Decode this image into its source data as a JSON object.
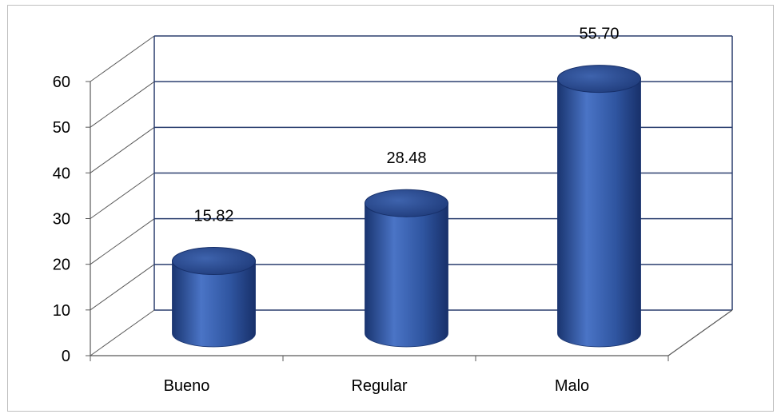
{
  "chart_data": {
    "type": "bar",
    "style": "3d-cylinder",
    "categories": [
      "Bueno",
      "Regular",
      "Malo"
    ],
    "values": [
      15.82,
      28.48,
      55.7
    ],
    "data_labels": [
      "15.82",
      "28.48",
      "55.70"
    ],
    "ylim": [
      0,
      60
    ],
    "yticks": [
      "0",
      "10",
      "20",
      "30",
      "40",
      "50",
      "60"
    ],
    "grid": true,
    "legend": "none",
    "title": "",
    "xlabel": "",
    "ylabel": "",
    "colors": {
      "bar": "#2f55a0",
      "bar_dark": "#1a3570",
      "bar_light": "#4a74c6",
      "grid": "#2b3f6f",
      "floor": "#595959",
      "border": "#bfbfbf"
    }
  }
}
